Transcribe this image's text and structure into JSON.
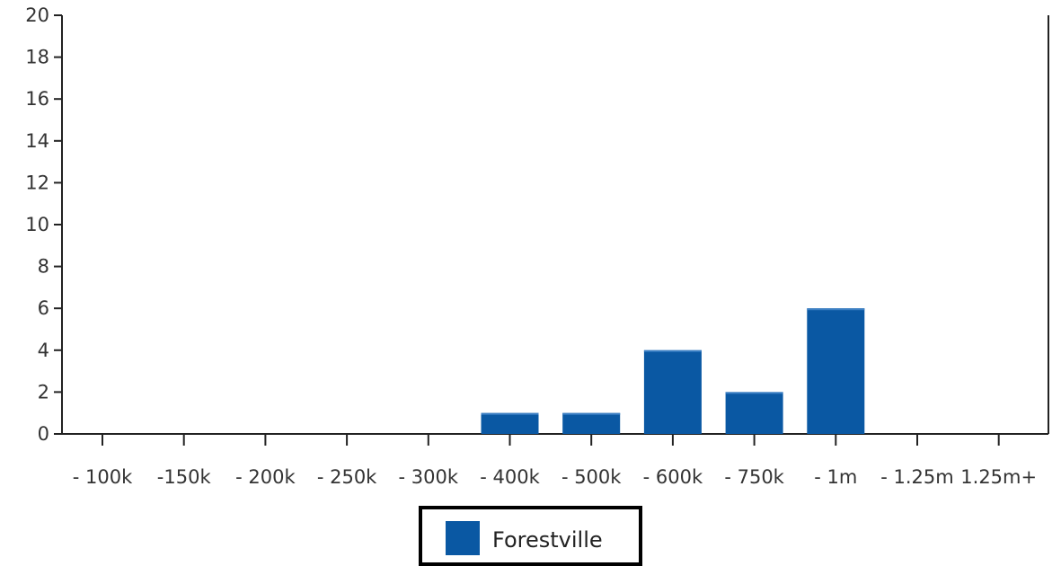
{
  "chart_data": {
    "type": "bar",
    "categories": [
      "- 100k",
      "-150k",
      "- 200k",
      "- 250k",
      "- 300k",
      "- 400k",
      "- 500k",
      "- 600k",
      "- 750k",
      "- 1m",
      "- 1.25m",
      "1.25m+"
    ],
    "series": [
      {
        "name": "Forestville",
        "color": "#0a58a3",
        "values": [
          0,
          0,
          0,
          0,
          0,
          1,
          1,
          4,
          2,
          6,
          0,
          0
        ]
      }
    ],
    "y_ticks": [
      "0",
      "2",
      "4",
      "6",
      "8",
      "10",
      "12",
      "14",
      "16",
      "18",
      "20"
    ],
    "ylim": [
      0,
      20
    ],
    "grid": false,
    "legend_position": "bottom-center"
  }
}
